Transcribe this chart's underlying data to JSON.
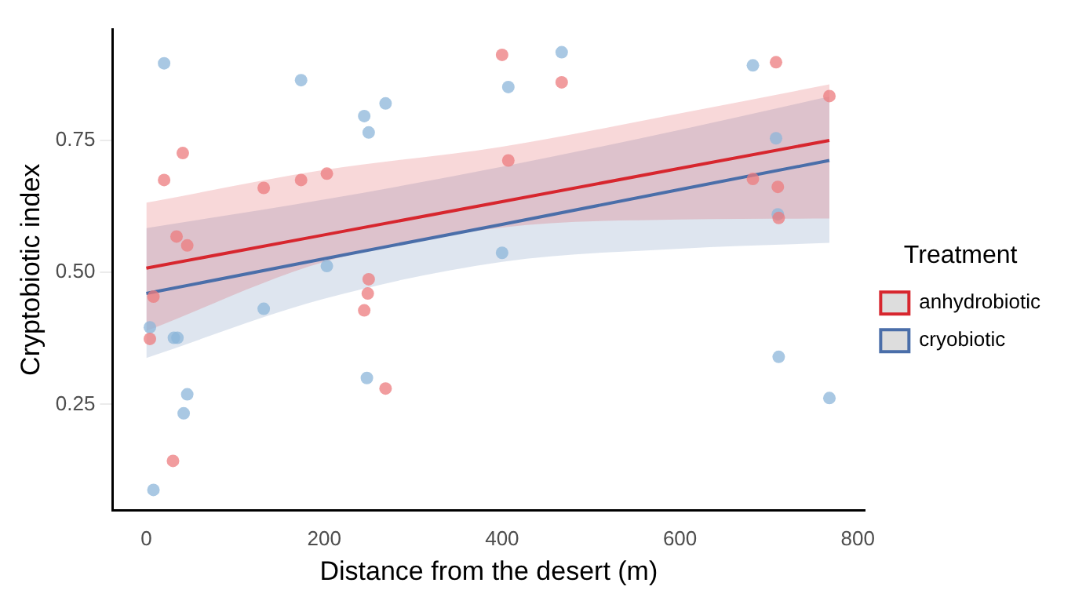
{
  "chart_data": {
    "type": "scatter",
    "xlabel": "Distance from the desert (m)",
    "ylabel": "Cryptobiotic index",
    "legend_title": "Treatment",
    "legend": "right",
    "grid": false,
    "marker": "circle",
    "xlim": [
      -38,
      808
    ],
    "xticks": [
      0,
      200,
      400,
      600,
      800
    ],
    "ylim": [
      0.05,
      0.96
    ],
    "yticks": [
      {
        "value": 0.25,
        "label": "0.25"
      },
      {
        "value": 0.5,
        "label": "0.50"
      },
      {
        "value": 0.75,
        "label": "0.75"
      }
    ],
    "series": [
      {
        "color": "#ec7b7e",
        "x": [
          8,
          4,
          20,
          41,
          34,
          46,
          30,
          132,
          174,
          203,
          250,
          249,
          245,
          269,
          400,
          467,
          407,
          708,
          768,
          682,
          710,
          711
        ],
        "values": [
          0.454,
          0.374,
          0.675,
          0.726,
          0.568,
          0.551,
          0.143,
          0.66,
          0.675,
          0.687,
          0.487,
          0.46,
          0.428,
          0.28,
          0.912,
          0.86,
          0.712,
          0.898,
          0.834,
          0.677,
          0.662,
          0.603
        ]
      },
      {
        "color": "#8cb6da",
        "x": [
          20,
          174,
          245,
          250,
          269,
          203,
          132,
          4,
          31,
          35,
          46,
          42,
          8,
          248,
          467,
          407,
          682,
          708,
          400,
          710,
          711,
          768
        ],
        "values": [
          0.896,
          0.864,
          0.796,
          0.765,
          0.82,
          0.512,
          0.431,
          0.396,
          0.376,
          0.376,
          0.269,
          0.233,
          0.088,
          0.3,
          0.917,
          0.851,
          0.892,
          0.754,
          0.537,
          0.61,
          0.34,
          0.262
        ]
      },
      {
        "type": "line",
        "marker": "none",
        "name": "anhydrobiotic",
        "color": "#d7262e",
        "x": [
          0,
          200,
          400,
          600,
          768
        ],
        "values": [
          0.508,
          0.571,
          0.634,
          0.697,
          0.75
        ],
        "lower": [
          0.389,
          0.52,
          0.585,
          0.6,
          0.602
        ],
        "upper": [
          0.632,
          0.694,
          0.738,
          0.801,
          0.856
        ]
      },
      {
        "type": "line",
        "marker": "none",
        "name": "cryobiotic",
        "color": "#4a6ea9",
        "x": [
          0,
          200,
          400,
          600,
          768
        ],
        "values": [
          0.46,
          0.526,
          0.591,
          0.657,
          0.712
        ],
        "lower": [
          0.338,
          0.45,
          0.52,
          0.545,
          0.556
        ],
        "upper": [
          0.584,
          0.638,
          0.7,
          0.77,
          0.833
        ]
      }
    ]
  }
}
